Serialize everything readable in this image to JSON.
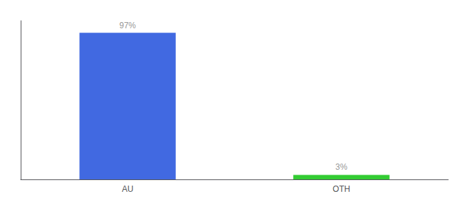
{
  "chart_data": {
    "type": "bar",
    "categories": [
      "AU",
      "OTH"
    ],
    "values": [
      97,
      3
    ],
    "value_labels": [
      "97%",
      "3%"
    ],
    "colors": [
      "#4169e1",
      "#33cc33"
    ],
    "ylim": [
      0,
      105
    ],
    "tick_labels": "x",
    "data_labels": true,
    "grid": false
  }
}
